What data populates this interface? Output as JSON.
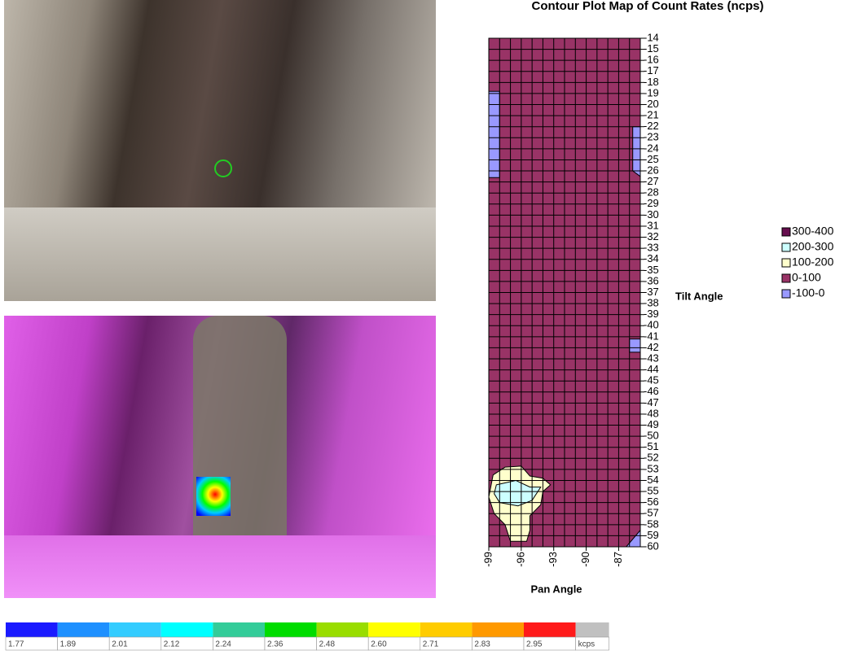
{
  "chart_data": {
    "type": "contour",
    "title": "Contour Plot Map of Count Rates (ncps)",
    "x_label": "Pan Angle",
    "y_label": "Tilt Angle",
    "xlim": [
      -99,
      -85
    ],
    "ylim": [
      -60,
      -14
    ],
    "xticks": [
      -99,
      -96,
      -93,
      -90,
      -87
    ],
    "yticks": [
      -14,
      -15,
      -16,
      -17,
      -18,
      -19,
      -20,
      -21,
      -22,
      -23,
      -24,
      -25,
      -26,
      -27,
      -28,
      -29,
      -30,
      -31,
      -32,
      -33,
      -34,
      -35,
      -36,
      -37,
      -38,
      -39,
      -40,
      -41,
      -42,
      -43,
      -44,
      -45,
      -46,
      -47,
      -48,
      -49,
      -50,
      -51,
      -52,
      -53,
      -54,
      -55,
      -56,
      -57,
      -58,
      -59,
      -60
    ],
    "grid": true,
    "legend": "right",
    "levels": [
      {
        "name": "300-400",
        "color": "#660e4e"
      },
      {
        "name": "200-300",
        "color": "#ccffff"
      },
      {
        "name": "100-200",
        "color": "#ffffcc"
      },
      {
        "name": "0-100",
        "color": "#993366"
      },
      {
        "name": "-100-0",
        "color": "#9999ff"
      }
    ],
    "background_level": 3,
    "regions": [
      {
        "level": 4,
        "x": [
          -99,
          -98,
          -98,
          -99
        ],
        "y": [
          -18.8,
          -18.8,
          -26.6,
          -26.6
        ]
      },
      {
        "level": 4,
        "x": [
          -85.7,
          -85,
          -85,
          -85.7
        ],
        "y": [
          -22,
          -22,
          -26.5,
          -26
        ]
      },
      {
        "level": 4,
        "x": [
          -86,
          -85,
          -85,
          -86
        ],
        "y": [
          -41.2,
          -41.2,
          -42.4,
          -42.4
        ]
      },
      {
        "level": 4,
        "x": [
          -86.3,
          -85,
          -85
        ],
        "y": [
          -60,
          -58.5,
          -60
        ]
      },
      {
        "level": 2,
        "x": [
          -98.6,
          -97.5,
          -96,
          -95.2,
          -94,
          -93.3,
          -94,
          -94.2,
          -95.2,
          -95.2,
          -95.5,
          -97,
          -97.5,
          -98.5,
          -99
        ],
        "y": [
          -53.5,
          -52.8,
          -52.7,
          -53.6,
          -53.8,
          -54.4,
          -55,
          -56.2,
          -57.2,
          -58.5,
          -59.5,
          -59.5,
          -58,
          -57,
          -55.5
        ]
      },
      {
        "level": 1,
        "x": [
          -98.3,
          -96.5,
          -95.2,
          -94.2,
          -95,
          -96.3,
          -98,
          -98.5
        ],
        "y": [
          -54.4,
          -54,
          -54.6,
          -54.6,
          -55.8,
          -56.3,
          -56,
          -55.2
        ]
      }
    ]
  },
  "color_scale": {
    "colors": [
      "#1a1aff",
      "#1e90ff",
      "#33ccff",
      "#00ffff",
      "#33cc99",
      "#00dd00",
      "#99dd00",
      "#ffff00",
      "#ffcc00",
      "#ff9900",
      "#ff1a1a",
      "#c0c0c0"
    ],
    "labels": [
      "1.77",
      "1.89",
      "2.01",
      "2.12",
      "2.24",
      "2.36",
      "2.48",
      "2.60",
      "2.71",
      "2.83",
      "2.95",
      "kcps"
    ]
  }
}
